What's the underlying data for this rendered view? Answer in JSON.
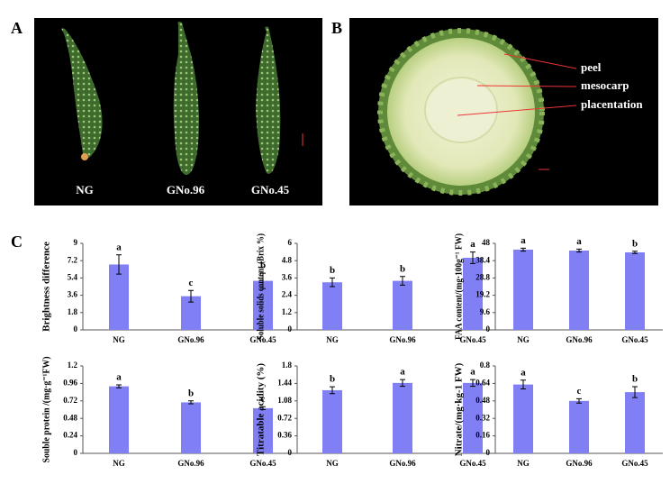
{
  "figure": {
    "panels": [
      "A",
      "B",
      "C"
    ],
    "photo_a": {
      "labels": [
        "NG",
        "GNo.96",
        "GNo.45"
      ]
    },
    "photo_b": {
      "labels": [
        "peel",
        "mesocarp",
        "placentation"
      ]
    }
  },
  "chart_data": [
    {
      "type": "bar",
      "y_label": "Brightness difference",
      "categories": [
        "NG",
        "GNo.96",
        "GNo.45"
      ],
      "values": [
        6.8,
        3.5,
        5.1
      ],
      "errors": [
        1.0,
        0.6,
        0.8
      ],
      "annotations": [
        "a",
        "c",
        "b"
      ],
      "color": "#8080f4",
      "ylim": [
        0,
        9
      ],
      "yticks": [
        0,
        1.8,
        3.6,
        5.4,
        7.2,
        9
      ]
    },
    {
      "type": "bar",
      "y_label": "Soluble solids content (Brix %)",
      "categories": [
        "NG",
        "GNo.96",
        "GNo.45"
      ],
      "values": [
        3.3,
        3.4,
        5.0
      ],
      "errors": [
        0.3,
        0.3,
        0.4
      ],
      "annotations": [
        "b",
        "b",
        "a"
      ],
      "color": "#8080f4",
      "ylim": [
        0,
        6
      ],
      "yticks": [
        0,
        1.2,
        2.4,
        3.6,
        4.8,
        6
      ]
    },
    {
      "type": "bar",
      "y_label": "FAA content/(mg·100g⁻¹ FW)",
      "categories": [
        "NG",
        "GNo.96",
        "GNo.45"
      ],
      "values": [
        44.5,
        44,
        43
      ],
      "errors": [
        0.8,
        0.8,
        0.6
      ],
      "annotations": [
        "a",
        "a",
        "b"
      ],
      "color": "#8080f4",
      "ylim": [
        0,
        48
      ],
      "yticks": [
        0,
        9.6,
        19.2,
        28.8,
        38.4,
        48
      ]
    },
    {
      "type": "bar",
      "y_label": "Souble protein /(mg·g⁻¹FW)",
      "categories": [
        "NG",
        "GNo.96",
        "GNo.45"
      ],
      "values": [
        0.92,
        0.7,
        0.62
      ],
      "errors": [
        0.02,
        0.02,
        0.02
      ],
      "annotations": [
        "a",
        "b",
        "c"
      ],
      "color": "#8080f4",
      "ylim": [
        0,
        1.2
      ],
      "yticks": [
        0,
        0.24,
        0.48,
        0.72,
        0.96,
        1.2
      ]
    },
    {
      "type": "bar",
      "y_label": "Titratable acidity (%)",
      "categories": [
        "NG",
        "GNo.96",
        "GNo.45"
      ],
      "values": [
        1.3,
        1.45,
        1.45
      ],
      "errors": [
        0.07,
        0.07,
        0.07
      ],
      "annotations": [
        "b",
        "a",
        "a"
      ],
      "color": "#8080f4",
      "ylim": [
        0,
        1.8
      ],
      "yticks": [
        0,
        0.36,
        0.72,
        1.08,
        1.44,
        1.8
      ]
    },
    {
      "type": "bar",
      "y_label": "Nitrate/(mg·kg-1 FW)",
      "categories": [
        "NG",
        "GNo.96",
        "GNo.45"
      ],
      "values": [
        0.63,
        0.48,
        0.56
      ],
      "errors": [
        0.04,
        0.02,
        0.05
      ],
      "annotations": [
        "a",
        "c",
        "b"
      ],
      "color": "#8080f4",
      "ylim": [
        0,
        0.8
      ],
      "yticks": [
        0,
        0.16,
        0.32,
        0.48,
        0.64,
        0.8
      ]
    }
  ]
}
